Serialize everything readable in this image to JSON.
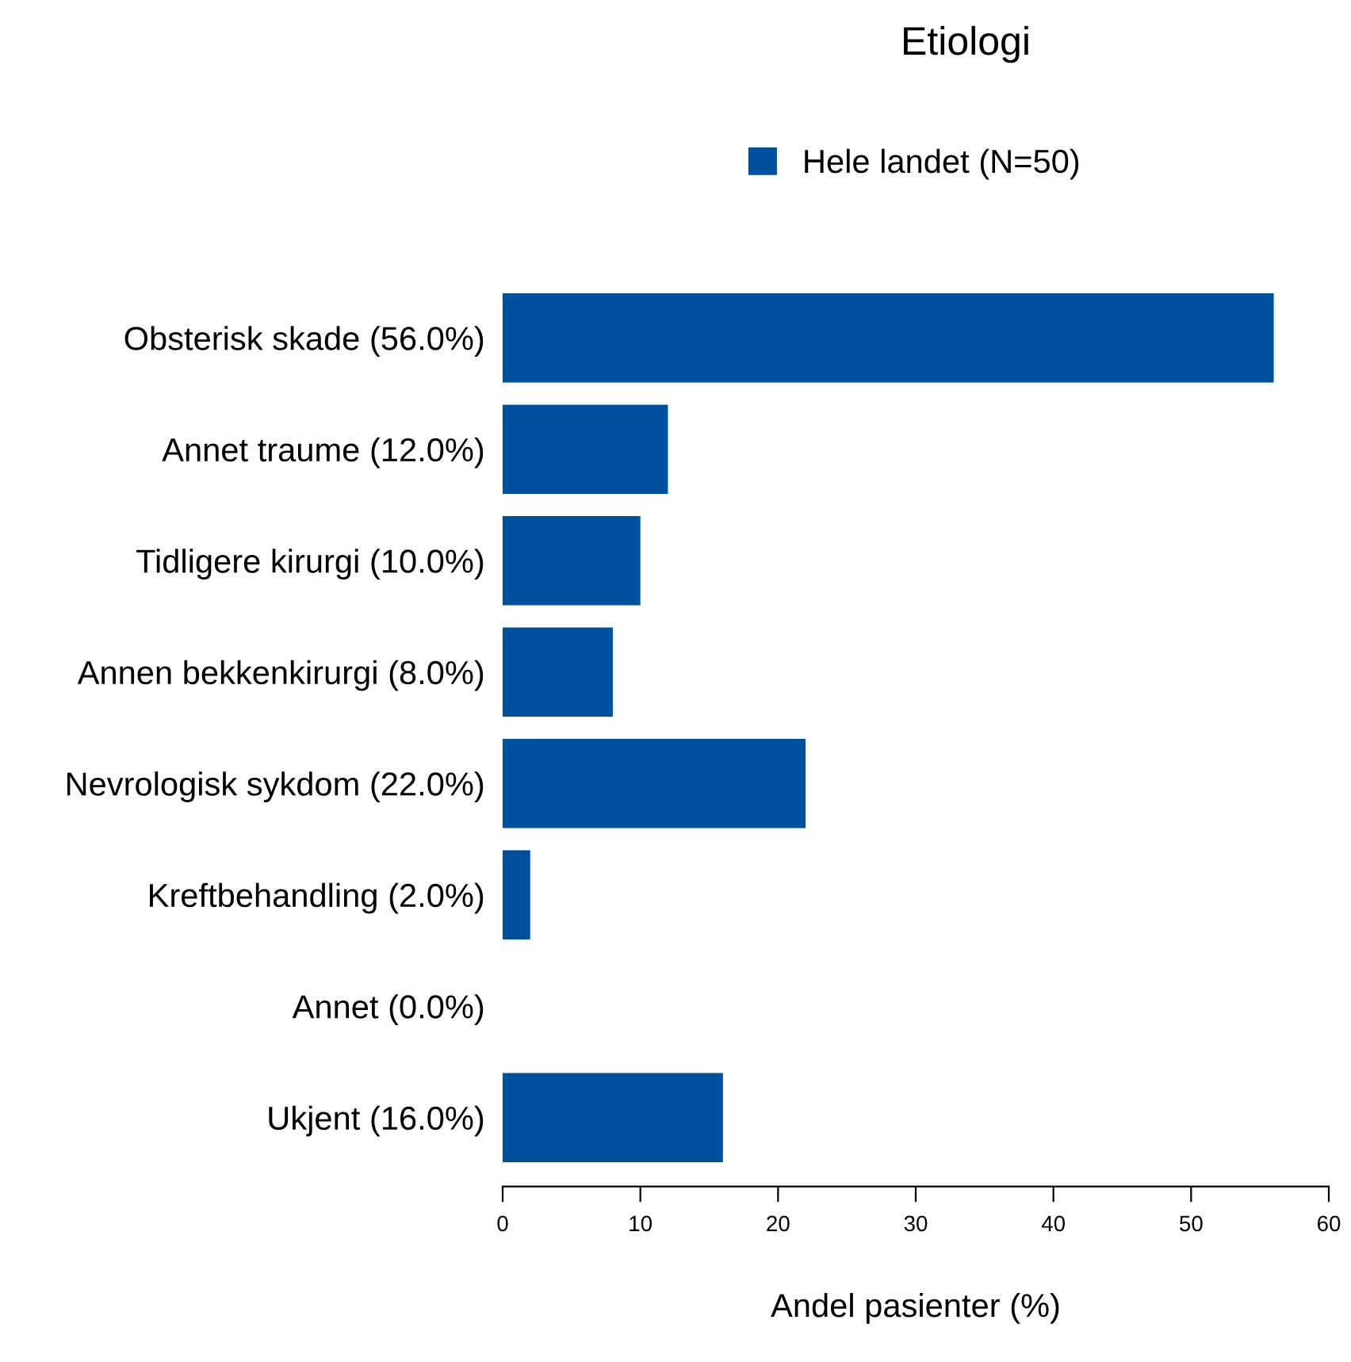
{
  "chart_data": {
    "type": "bar",
    "orientation": "horizontal",
    "title": "Etiologi",
    "xlabel": "Andel pasienter (%)",
    "categories": [
      "Obsterisk skade (56.0%)",
      "Annet traume (12.0%)",
      "Tidligere kirurgi (10.0%)",
      "Annen bekkenkirurgi (8.0%)",
      "Nevrologisk sykdom (22.0%)",
      "Kreftbehandling (2.0%)",
      "Annet (0.0%)",
      "Ukjent (16.0%)"
    ],
    "series": [
      {
        "name": "Hele landet (N=50)",
        "color": "#0050a0",
        "values": [
          56,
          12,
          10,
          8,
          22,
          2,
          0,
          16
        ]
      }
    ],
    "xlim": [
      0,
      60
    ],
    "xticks": [
      0,
      10,
      20,
      30,
      40,
      50,
      60
    ],
    "grid": false,
    "legend": "top"
  }
}
